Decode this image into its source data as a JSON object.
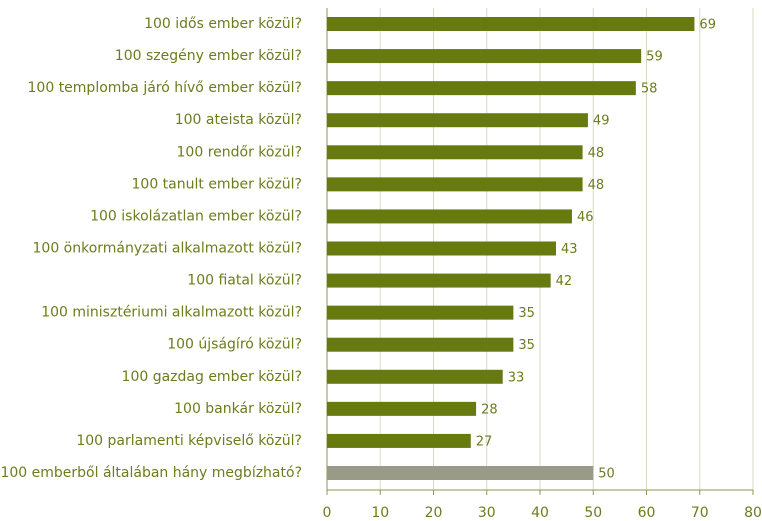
{
  "chart_data": {
    "type": "barh",
    "categories": [
      "100 idős ember közül?",
      "100 szegény ember közül?",
      "100 templomba járó hívő ember közül?",
      "100 ateista közül?",
      "100 rendőr közül?",
      "100 tanult ember közül?",
      "100 iskolázatlan ember közül?",
      "100 önkormányzati alkalmazott közül?",
      "100 fiatal közül?",
      "100 minisztériumi alkalmazott közül?",
      "100 újságíró közül?",
      "100 gazdag ember közül?",
      "100 bankár közül?",
      "100 parlamenti képviselő közül?",
      "100 emberből általában hány megbízható?"
    ],
    "values": [
      69,
      59,
      58,
      49,
      48,
      48,
      46,
      43,
      42,
      35,
      35,
      33,
      28,
      27,
      50
    ],
    "colors": [
      "#667a0f",
      "#667a0f",
      "#667a0f",
      "#667a0f",
      "#667a0f",
      "#667a0f",
      "#667a0f",
      "#667a0f",
      "#667a0f",
      "#667a0f",
      "#667a0f",
      "#667a0f",
      "#667a0f",
      "#667a0f",
      "#9a9a88"
    ],
    "xlim": [
      0,
      80
    ],
    "xticks": [
      0,
      10,
      20,
      30,
      40,
      50,
      60,
      70,
      80
    ],
    "grid": true
  }
}
